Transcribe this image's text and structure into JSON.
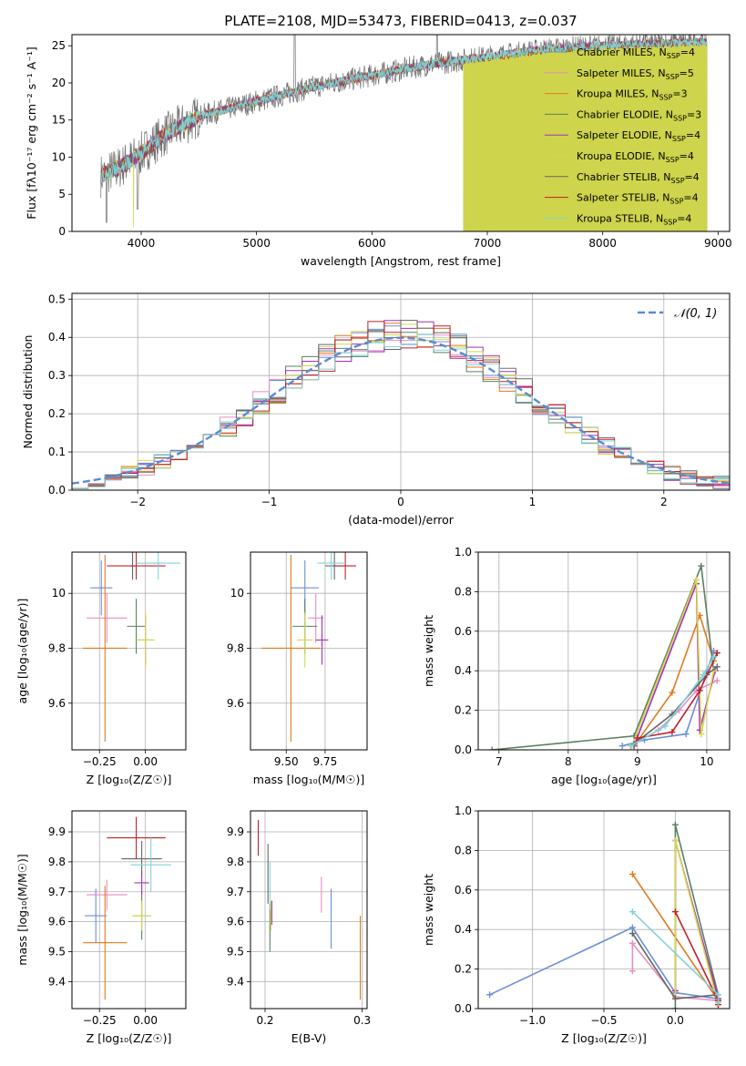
{
  "colors": {
    "chabrier_miles": "#6b8fd8",
    "salpeter_miles": "#e88fc0",
    "kroupa_miles": "#e07a1e",
    "chabrier_elodie": "#5a8060",
    "salpeter_elodie": "#a230c0",
    "kroupa_elodie": "#d4d84a",
    "chabrier_stelib": "#666666",
    "salpeter_stelib": "#c0202a",
    "kroupa_stelib": "#7fd4d8",
    "normal": "#5b8bd0",
    "grid": "#b0b0b0"
  },
  "chart_data": [
    {
      "id": "spectrum",
      "type": "line",
      "title": "PLATE=2108, MJD=53473, FIBERID=0413, z=0.037",
      "xlabel": "wavelength [Angstrom, rest frame]",
      "ylabel": "Flux [fλ10⁻¹⁷ erg cm⁻² s⁻¹ A⁻¹]",
      "xlim": [
        3400,
        9100
      ],
      "ylim": [
        0,
        26.5
      ],
      "xticks": [
        4000,
        5000,
        6000,
        7000,
        8000,
        9000
      ],
      "yticks": [
        0,
        5,
        10,
        15,
        20,
        25
      ],
      "grid": false,
      "legend_position": "upper-right",
      "legend": [
        {
          "label": "Chabrier MILES, N",
          "sub": "SSP",
          "tail": "=4",
          "key": "chabrier_miles"
        },
        {
          "label": "Salpeter MILES, N",
          "sub": "SSP",
          "tail": "=5",
          "key": "salpeter_miles"
        },
        {
          "label": "Kroupa MILES, N",
          "sub": "SSP",
          "tail": "=3",
          "key": "kroupa_miles"
        },
        {
          "label": "Chabrier ELODIE, N",
          "sub": "SSP",
          "tail": "=3",
          "key": "chabrier_elodie"
        },
        {
          "label": "Salpeter ELODIE, N",
          "sub": "SSP",
          "tail": "=4",
          "key": "salpeter_elodie"
        },
        {
          "label": "Kroupa ELODIE, N",
          "sub": "SSP",
          "tail": "=4",
          "key": "kroupa_elodie"
        },
        {
          "label": "Chabrier STELIB, N",
          "sub": "SSP",
          "tail": "=4",
          "key": "chabrier_stelib"
        },
        {
          "label": "Salpeter STELIB, N",
          "sub": "SSP",
          "tail": "=4",
          "key": "salpeter_stelib"
        },
        {
          "label": "Kroupa STELIB, N",
          "sub": "SSP",
          "tail": "=4",
          "key": "kroupa_stelib"
        }
      ],
      "continuum_knots": [
        [
          3650,
          7.5
        ],
        [
          3800,
          8.5
        ],
        [
          4000,
          10.5
        ],
        [
          4200,
          13
        ],
        [
          4500,
          15.5
        ],
        [
          5000,
          17.5
        ],
        [
          5500,
          19.5
        ],
        [
          6000,
          21
        ],
        [
          6500,
          22.5
        ],
        [
          7000,
          23.5
        ],
        [
          7500,
          24.5
        ],
        [
          8000,
          25
        ],
        [
          8500,
          25.3
        ],
        [
          8900,
          25.5
        ]
      ],
      "kroupa_miles_drop_at": 7430,
      "elodie_drop_at": 6790
    },
    {
      "id": "residuals",
      "type": "step",
      "xlabel": "(data-model)/error",
      "ylabel": "Normed distribution",
      "xlim": [
        -2.5,
        2.5
      ],
      "ylim": [
        0,
        0.515
      ],
      "xticks": [
        -2,
        -1,
        0,
        1,
        2
      ],
      "yticks": [
        0.0,
        0.1,
        0.2,
        0.3,
        0.4,
        0.5
      ],
      "grid": true,
      "legend_position": "upper-right",
      "reference_label": "𝒩(0, 1)",
      "bins": 40
    },
    {
      "id": "z_vs_age",
      "type": "errorbar",
      "xlabel": "Z [log₁₀(Z/Z☉)]",
      "ylabel": "age  [log₁₀(age/yr)]",
      "xlim": [
        -0.4,
        0.22
      ],
      "ylim": [
        9.43,
        10.15
      ],
      "xticks": [
        -0.25,
        0.0
      ],
      "xticklabels": [
        "−0.25",
        "0.00"
      ],
      "yticks": [
        9.6,
        9.8,
        10.0
      ],
      "grid": true,
      "points": [
        {
          "key": "chabrier_miles",
          "x": -0.24,
          "xerr": 0.06,
          "y": 10.02,
          "yerr": 0.1
        },
        {
          "key": "salpeter_miles",
          "x": -0.21,
          "xerr": 0.11,
          "y": 9.91,
          "yerr": 0.09
        },
        {
          "key": "kroupa_miles",
          "x": -0.22,
          "xerr": 0.12,
          "y": 9.8,
          "yerr": 0.34
        },
        {
          "key": "chabrier_elodie",
          "x": -0.05,
          "xerr": 0.05,
          "y": 9.88,
          "yerr": 0.1
        },
        {
          "key": "salpeter_elodie",
          "x": 0.0,
          "xerr": 0.04,
          "y": 9.83,
          "yerr": 0.09
        },
        {
          "key": "kroupa_elodie",
          "x": 0.0,
          "xerr": 0.05,
          "y": 9.83,
          "yerr": 0.1
        },
        {
          "key": "chabrier_stelib",
          "x": -0.07,
          "xerr": 0.02,
          "y": 10.1,
          "yerr": 0.05
        },
        {
          "key": "salpeter_stelib",
          "x": -0.05,
          "xerr": 0.16,
          "y": 10.1,
          "yerr": 0.05
        },
        {
          "key": "kroupa_stelib",
          "x": 0.07,
          "xerr": 0.12,
          "y": 10.11,
          "yerr": 0.06
        }
      ]
    },
    {
      "id": "mass_vs_age",
      "type": "errorbar",
      "xlabel": "mass [log₁₀(M/M☉)]",
      "ylabel": "",
      "xlim": [
        9.27,
        10.02
      ],
      "ylim": [
        9.43,
        10.15
      ],
      "xticks": [
        9.5,
        9.75
      ],
      "xticklabels": [
        "9.50",
        "9.75"
      ],
      "yticks": [
        9.6,
        9.8,
        10.0
      ],
      "grid": true,
      "points": [
        {
          "key": "chabrier_miles",
          "x": 9.62,
          "xerr": 0.09,
          "y": 10.02,
          "yerr": 0.1
        },
        {
          "key": "salpeter_miles",
          "x": 9.69,
          "xerr": 0.05,
          "y": 9.91,
          "yerr": 0.09
        },
        {
          "key": "kroupa_miles",
          "x": 9.53,
          "xerr": 0.19,
          "y": 9.8,
          "yerr": 0.34
        },
        {
          "key": "chabrier_elodie",
          "x": 9.62,
          "xerr": 0.08,
          "y": 9.88,
          "yerr": 0.1
        },
        {
          "key": "salpeter_elodie",
          "x": 9.73,
          "xerr": 0.04,
          "y": 9.83,
          "yerr": 0.09
        },
        {
          "key": "kroupa_elodie",
          "x": 9.62,
          "xerr": 0.05,
          "y": 9.83,
          "yerr": 0.1
        },
        {
          "key": "chabrier_stelib",
          "x": 9.81,
          "xerr": 0.06,
          "y": 10.1,
          "yerr": 0.05
        },
        {
          "key": "salpeter_stelib",
          "x": 9.88,
          "xerr": 0.07,
          "y": 10.1,
          "yerr": 0.05
        },
        {
          "key": "kroupa_stelib",
          "x": 9.79,
          "xerr": 0.09,
          "y": 10.11,
          "yerr": 0.06
        }
      ]
    },
    {
      "id": "age_vs_weight",
      "type": "line",
      "xlabel": "age  [log₁₀(age/yr)]",
      "ylabel": "mass weight",
      "xlim": [
        6.7,
        10.33
      ],
      "ylim": [
        0,
        1.0
      ],
      "xticks": [
        7,
        8,
        9,
        10
      ],
      "yticks": [
        0.0,
        0.2,
        0.4,
        0.6,
        0.8,
        1.0
      ],
      "grid": true,
      "series": [
        {
          "key": "chabrier_miles",
          "x": [
            8.78,
            9.1,
            9.7,
            10.1
          ],
          "y": [
            0.02,
            0.05,
            0.08,
            0.5
          ]
        },
        {
          "key": "salpeter_miles",
          "x": [
            8.9,
            9.3,
            9.6,
            9.85,
            10.15
          ],
          "y": [
            0.02,
            0.1,
            0.2,
            0.3,
            0.35
          ]
        },
        {
          "key": "kroupa_miles",
          "x": [
            8.95,
            9.5,
            9.9,
            10.1
          ],
          "y": [
            0.02,
            0.29,
            0.68,
            0.45
          ]
        },
        {
          "key": "chabrier_elodie",
          "x": [
            6.9,
            8.95,
            9.92,
            10.1
          ],
          "y": [
            0.0,
            0.07,
            0.93,
            0.4
          ]
        },
        {
          "key": "salpeter_elodie",
          "x": [
            8.95,
            9.85,
            9.9,
            10.12
          ],
          "y": [
            0.02,
            0.84,
            0.1,
            0.4
          ]
        },
        {
          "key": "kroupa_elodie",
          "x": [
            8.92,
            9.85,
            9.92,
            10.1
          ],
          "y": [
            0.02,
            0.86,
            0.08,
            0.4
          ]
        },
        {
          "key": "chabrier_stelib",
          "x": [
            8.95,
            9.5,
            10.0,
            10.15
          ],
          "y": [
            0.03,
            0.18,
            0.38,
            0.42
          ]
        },
        {
          "key": "salpeter_stelib",
          "x": [
            9.0,
            9.5,
            9.9,
            10.15
          ],
          "y": [
            0.06,
            0.09,
            0.3,
            0.49
          ]
        },
        {
          "key": "kroupa_stelib",
          "x": [
            8.9,
            9.4,
            9.95,
            10.1
          ],
          "y": [
            0.02,
            0.12,
            0.38,
            0.47
          ]
        }
      ]
    },
    {
      "id": "z_vs_mass",
      "type": "errorbar",
      "xlabel": "Z [log₁₀(Z/Z☉)]",
      "ylabel": "mass [log₁₀(M/M☉)]",
      "xlim": [
        -0.4,
        0.22
      ],
      "ylim": [
        9.31,
        9.97
      ],
      "xticks": [
        -0.25,
        0.0
      ],
      "xticklabels": [
        "−0.25",
        "0.00"
      ],
      "yticks": [
        9.4,
        9.5,
        9.6,
        9.7,
        9.8,
        9.9
      ],
      "grid": true,
      "points": [
        {
          "key": "chabrier_miles",
          "x": -0.27,
          "xerr": 0.06,
          "y": 9.62,
          "yerr": 0.09
        },
        {
          "key": "salpeter_miles",
          "x": -0.21,
          "xerr": 0.11,
          "y": 9.69,
          "yerr": 0.05
        },
        {
          "key": "kroupa_miles",
          "x": -0.22,
          "xerr": 0.12,
          "y": 9.53,
          "yerr": 0.19
        },
        {
          "key": "chabrier_elodie",
          "x": -0.02,
          "xerr": 0.05,
          "y": 9.62,
          "yerr": 0.08
        },
        {
          "key": "salpeter_elodie",
          "x": -0.02,
          "xerr": 0.04,
          "y": 9.73,
          "yerr": 0.04
        },
        {
          "key": "kroupa_elodie",
          "x": -0.02,
          "xerr": 0.05,
          "y": 9.62,
          "yerr": 0.05
        },
        {
          "key": "chabrier_stelib",
          "x": -0.02,
          "xerr": 0.11,
          "y": 9.81,
          "yerr": 0.06
        },
        {
          "key": "salpeter_stelib",
          "x": -0.05,
          "xerr": 0.16,
          "y": 9.88,
          "yerr": 0.07
        },
        {
          "key": "kroupa_stelib",
          "x": 0.03,
          "xerr": 0.11,
          "y": 9.79,
          "yerr": 0.09
        }
      ]
    },
    {
      "id": "ebv_vs_mass",
      "type": "errorbar",
      "xlabel": "E(B-V)",
      "ylabel": "",
      "xlim": [
        0.185,
        0.305
      ],
      "ylim": [
        9.31,
        9.97
      ],
      "xticks": [
        0.2,
        0.3
      ],
      "xticklabels": [
        "0.2",
        "0.3"
      ],
      "yticks": [
        9.4,
        9.5,
        9.6,
        9.7,
        9.8,
        9.9
      ],
      "grid": true,
      "points": [
        {
          "key": "chabrier_miles",
          "x": 0.268,
          "y": 9.61,
          "yerr": 0.1
        },
        {
          "key": "salpeter_miles",
          "x": 0.258,
          "y": 9.69,
          "yerr": 0.06
        },
        {
          "key": "kroupa_miles",
          "x": 0.298,
          "y": 9.48,
          "yerr": 0.14
        },
        {
          "key": "chabrier_elodie",
          "x": 0.205,
          "y": 9.58,
          "yerr": 0.08
        },
        {
          "key": "salpeter_elodie",
          "x": 0.207,
          "y": 9.63,
          "yerr": 0.04
        },
        {
          "key": "kroupa_elodie",
          "x": 0.206,
          "y": 9.62,
          "yerr": 0.05
        },
        {
          "key": "chabrier_stelib",
          "x": 0.203,
          "y": 9.76,
          "yerr": 0.1
        },
        {
          "key": "salpeter_stelib",
          "x": 0.193,
          "y": 9.88,
          "yerr": 0.06
        },
        {
          "key": "kroupa_stelib",
          "x": 0.205,
          "y": 9.72,
          "yerr": 0.08
        }
      ]
    },
    {
      "id": "z_vs_weight",
      "type": "line",
      "xlabel": "Z [log₁₀(Z/Z☉)]",
      "ylabel": "mass weight",
      "xlim": [
        -1.38,
        0.38
      ],
      "ylim": [
        0,
        1.0
      ],
      "xticks": [
        -1.0,
        -0.5,
        0.0
      ],
      "xticklabels": [
        "−1.0",
        "−0.5",
        "0.0"
      ],
      "yticks": [
        0.0,
        0.2,
        0.4,
        0.6,
        0.8,
        1.0
      ],
      "grid": true,
      "series": [
        {
          "key": "chabrier_miles",
          "x": [
            -1.3,
            -0.3,
            0.0,
            0.3
          ],
          "y": [
            0.07,
            0.41,
            0.08,
            0.05
          ]
        },
        {
          "key": "salpeter_miles",
          "x": [
            -0.3,
            -0.3,
            0.0,
            0.3
          ],
          "y": [
            0.19,
            0.33,
            0.06,
            0.04
          ]
        },
        {
          "key": "kroupa_miles",
          "x": [
            -0.3,
            0.3,
            0.3
          ],
          "y": [
            0.68,
            0.04,
            0.02
          ]
        },
        {
          "key": "chabrier_elodie",
          "x": [
            0.0,
            0.0,
            0.3
          ],
          "y": [
            0.0,
            0.93,
            0.07
          ]
        },
        {
          "key": "salpeter_elodie",
          "x": [
            0.0,
            0.0,
            0.3
          ],
          "y": [
            0.09,
            0.85,
            0.05
          ]
        },
        {
          "key": "kroupa_elodie",
          "x": [
            0.0,
            0.0,
            0.3
          ],
          "y": [
            0.05,
            0.85,
            0.02
          ]
        },
        {
          "key": "chabrier_stelib",
          "x": [
            -0.3,
            0.0,
            0.3
          ],
          "y": [
            0.38,
            0.05,
            0.07
          ]
        },
        {
          "key": "salpeter_stelib",
          "x": [
            0.0,
            0.3,
            0.3
          ],
          "y": [
            0.49,
            0.04,
            0.02
          ]
        },
        {
          "key": "kroupa_stelib",
          "x": [
            -0.3,
            0.3,
            0.3
          ],
          "y": [
            0.49,
            0.07,
            0.03
          ]
        }
      ]
    }
  ]
}
